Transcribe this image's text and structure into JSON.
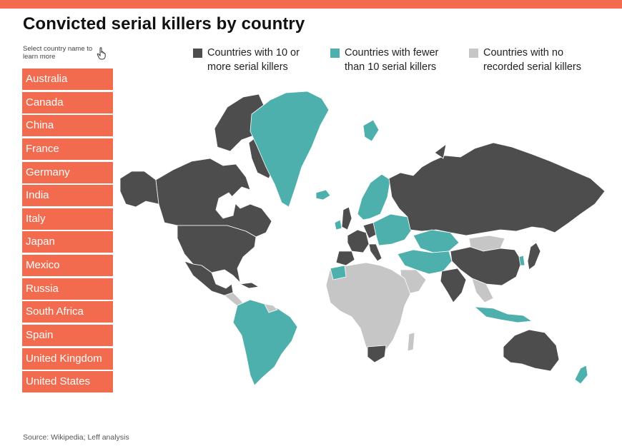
{
  "title": "Convicted serial killers by country",
  "hint": "Select country name to learn more",
  "countries": [
    "Australia",
    "Canada",
    "China",
    "France",
    "Germany",
    "India",
    "Italy",
    "Japan",
    "Mexico",
    "Russia",
    "South Africa",
    "Spain",
    "United Kingdom",
    "United States"
  ],
  "legend": [
    {
      "label": "Countries with 10 or\nmore serial killers",
      "color": "#4d4d4d"
    },
    {
      "label": "Countries with fewer\nthan 10 serial killers",
      "color": "#4eb0ad"
    },
    {
      "label": "Countries with no\nrecorded serial killers",
      "color": "#c6c6c6"
    }
  ],
  "colors": {
    "accent": "#f26b4f",
    "many": "#4d4d4d",
    "few": "#4eb0ad",
    "none": "#c6c6c6"
  },
  "source": "Source: Wikipedia; Leff analysis"
}
